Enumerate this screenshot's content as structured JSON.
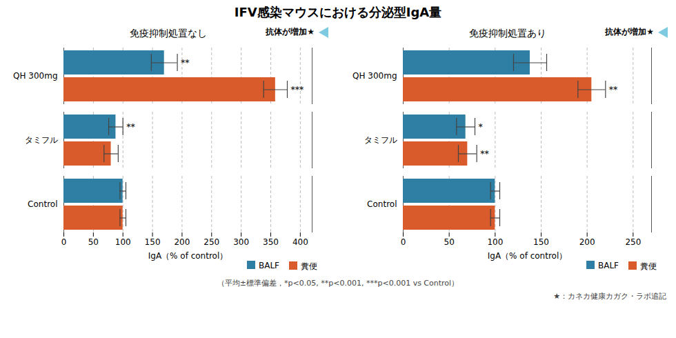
{
  "title": "IFV感染マウスにおける分泌型IgA量",
  "annotations": [
    "（平均±標準偏差，*p<0.05, **p<0.001, ***p<0.001 vs Control）",
    "★：カネカ健康カガク・ラボ追記"
  ],
  "chart_data": [
    {
      "type": "bar",
      "orientation": "horizontal",
      "subtitle": "免疫抑制処置なし",
      "categories": [
        "QH 300mg",
        "タミフル",
        "Control"
      ],
      "series": [
        {
          "name": "BALF",
          "color": "#2e7fa3",
          "values": [
            170,
            88,
            100
          ],
          "errors": [
            22,
            12,
            5
          ],
          "significance": [
            "**",
            "**",
            null
          ]
        },
        {
          "name": "糞便",
          "color": "#d95a2b",
          "values": [
            358,
            80,
            100
          ],
          "errors": [
            20,
            12,
            5
          ],
          "significance": [
            "***",
            null,
            null
          ]
        }
      ],
      "xlabel": "IgA（% of control）",
      "xlim": [
        0,
        420
      ],
      "xticks": [
        0,
        50,
        100,
        150,
        200,
        250,
        300,
        350,
        400
      ],
      "grid": true,
      "legend": "lower right",
      "annotations": [
        {
          "text": "抗体が増加★",
          "color": "#7ecae0"
        }
      ]
    },
    {
      "type": "bar",
      "orientation": "horizontal",
      "subtitle": "免疫抑制処置あり",
      "categories": [
        "QH 300mg",
        "タミフル",
        "Control"
      ],
      "series": [
        {
          "name": "BALF",
          "color": "#2e7fa3",
          "values": [
            138,
            68,
            100
          ],
          "errors": [
            18,
            10,
            5
          ],
          "significance": [
            null,
            "*",
            null
          ]
        },
        {
          "name": "糞便",
          "color": "#d95a2b",
          "values": [
            205,
            70,
            100
          ],
          "errors": [
            15,
            10,
            5
          ],
          "significance": [
            "**",
            "**",
            null
          ]
        }
      ],
      "xlabel": "IgA（% of control）",
      "xlim": [
        0,
        270
      ],
      "xticks": [
        0,
        50,
        100,
        150,
        200,
        250
      ],
      "grid": true,
      "legend": "lower right",
      "annotations": [
        {
          "text": "抗体が増加★",
          "color": "#7ecae0"
        }
      ]
    }
  ]
}
